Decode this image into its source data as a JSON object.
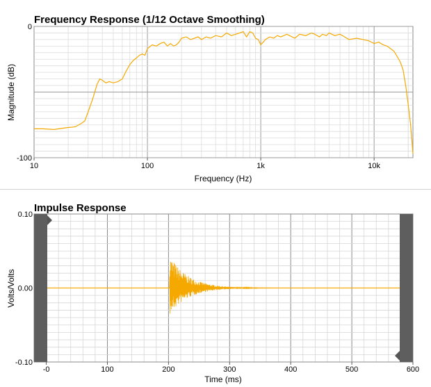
{
  "chart_data": [
    {
      "type": "line",
      "title": "Frequency Response (1/12 Octave Smoothing)",
      "xlabel": "Frequency (Hz)",
      "ylabel": "Magnitude (dB)",
      "x_scale": "log",
      "xlim": [
        10,
        22000
      ],
      "ylim": [
        -100,
        0
      ],
      "grid": true,
      "x_ticks": [
        10,
        100,
        1000,
        10000
      ],
      "x_tick_labels": [
        "10",
        "100",
        "1k",
        "10k"
      ],
      "y_ticks": [
        0,
        -100
      ],
      "y_tick_labels": [
        "0",
        "-100"
      ],
      "line_color": "#f5a800",
      "series": [
        {
          "x": [
            10,
            12,
            15,
            18,
            20,
            23,
            26,
            28,
            30,
            33,
            36,
            38,
            40,
            43,
            46,
            50,
            55,
            60,
            65,
            70,
            75,
            80,
            85,
            90,
            95,
            100,
            110,
            120,
            130,
            140,
            150,
            160,
            170,
            180,
            190,
            200,
            220,
            240,
            260,
            280,
            300,
            330,
            360,
            400,
            450,
            500,
            550,
            600,
            650,
            700,
            750,
            800,
            850,
            900,
            950,
            1000,
            1100,
            1200,
            1300,
            1400,
            1500,
            1700,
            2000,
            2200,
            2500,
            2800,
            3000,
            3300,
            3500,
            3800,
            4000,
            4500,
            5000,
            5500,
            6000,
            7000,
            8000,
            9000,
            10000,
            11000,
            12000,
            13000,
            14000,
            15000,
            16000,
            17000,
            18000,
            19000,
            20000,
            21000,
            22000
          ],
          "y": [
            -78,
            -78,
            -78.5,
            -77.5,
            -77,
            -76.5,
            -74,
            -72,
            -65,
            -55,
            -44,
            -40,
            -41,
            -43,
            -42,
            -43,
            -42,
            -40,
            -34,
            -29,
            -26,
            -24,
            -22,
            -21,
            -22,
            -17,
            -14,
            -15,
            -13,
            -12,
            -15,
            -13,
            -15,
            -14,
            -12,
            -9,
            -8,
            -10,
            -9,
            -8,
            -10,
            -8,
            -9,
            -7,
            -8,
            -5,
            -7,
            -6,
            -5,
            -4,
            -8,
            -4,
            -5,
            -9,
            -10,
            -14,
            -10,
            -8,
            -9,
            -7,
            -8,
            -6,
            -9,
            -6,
            -7,
            -5,
            -6,
            -8,
            -6,
            -7,
            -5,
            -7,
            -6,
            -8,
            -10,
            -9,
            -10,
            -11,
            -13,
            -12,
            -14,
            -15,
            -17,
            -19,
            -23,
            -27,
            -33,
            -45,
            -60,
            -75,
            -97
          ]
        }
      ]
    },
    {
      "type": "line",
      "title": "Impulse Response",
      "xlabel": "Time (ms)",
      "ylabel": "Volts/Volts",
      "xlim": [
        -20,
        600
      ],
      "ylim": [
        -0.1,
        0.1
      ],
      "grid": true,
      "x_ticks": [
        0,
        100,
        200,
        300,
        400,
        500,
        600
      ],
      "x_tick_labels": [
        "-0",
        "100",
        "200",
        "300",
        "400",
        "500",
        "600"
      ],
      "y_ticks": [
        0.1,
        0.0,
        -0.1
      ],
      "y_tick_labels": [
        "0.10",
        "0.00",
        "-0.10"
      ],
      "line_color": "#f5a800",
      "window_markers_ms": [
        -20,
        580,
        600
      ],
      "impulse": {
        "onset_ms": 202,
        "peak_positive": 0.045,
        "peak_negative": -0.037,
        "decay_ms": 30,
        "settle_ms": 400
      }
    }
  ]
}
